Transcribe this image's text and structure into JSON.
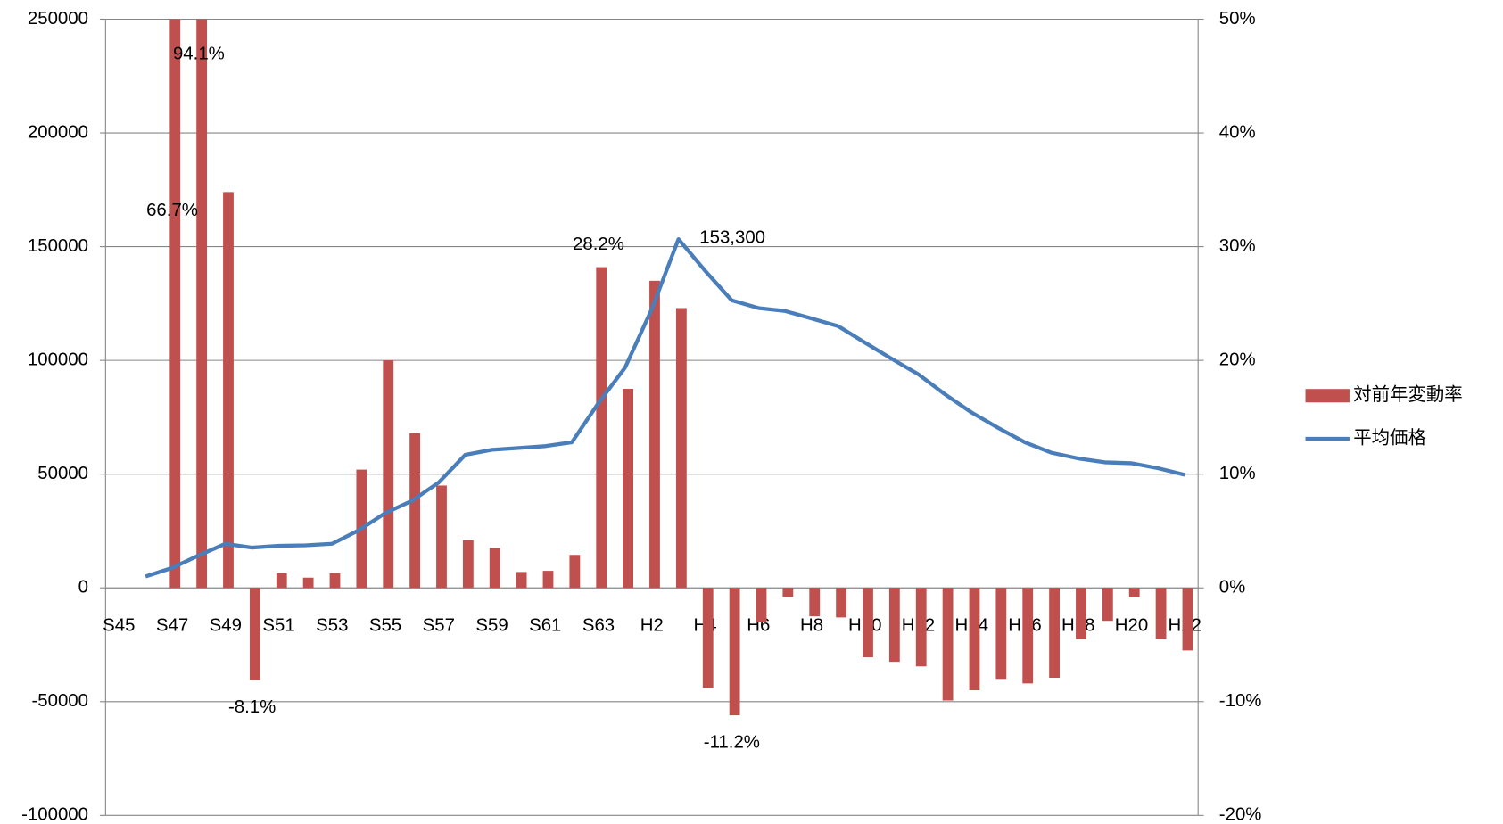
{
  "chart_data": {
    "type": "bar-line",
    "categories": [
      "S45",
      null,
      "S47",
      null,
      "S49",
      null,
      "S51",
      null,
      "S53",
      null,
      "S55",
      null,
      "S57",
      null,
      "S59",
      null,
      "S61",
      null,
      "S63",
      null,
      "H2",
      null,
      "H4",
      null,
      "H6",
      null,
      "H8",
      null,
      "H10",
      null,
      "H12",
      null,
      "H14",
      null,
      "H16",
      null,
      "H18",
      null,
      "H20",
      null,
      "H22"
    ],
    "series": [
      {
        "name": "対前年変動率",
        "type": "bar",
        "axis": "y2",
        "color": "#c0504d",
        "values": [
          null,
          null,
          66.7,
          94.1,
          34.8,
          -8.1,
          1.3,
          0.9,
          1.3,
          10.4,
          20.0,
          13.6,
          9.0,
          4.2,
          3.5,
          1.4,
          1.5,
          2.9,
          28.2,
          17.5,
          27.0,
          24.6,
          -8.8,
          -11.2,
          -3.0,
          -0.8,
          -2.5,
          -2.6,
          -6.1,
          -6.5,
          -6.9,
          -9.9,
          -9.0,
          -8.0,
          -8.4,
          -7.9,
          -4.5,
          -2.9,
          -0.8,
          -4.5,
          -5.5
        ],
        "value_labels": [
          null,
          null,
          "66.7%",
          "94.1%",
          null,
          "-8.1%",
          null,
          null,
          null,
          null,
          null,
          null,
          null,
          null,
          null,
          null,
          null,
          null,
          "28.2%",
          null,
          null,
          null,
          null,
          "-11.2%",
          null,
          null,
          null,
          null,
          null,
          null,
          null,
          null,
          null,
          null,
          null,
          null,
          null,
          null,
          null,
          null,
          null
        ]
      },
      {
        "name": "平均価格",
        "type": "line",
        "color": "#4a7ebb",
        "values": [
          null,
          5000,
          8800,
          14300,
          19400,
          17700,
          18500,
          18700,
          19400,
          25300,
          32900,
          38300,
          46300,
          58500,
          60700,
          61500,
          62300,
          64000,
          81300,
          96900,
          122600,
          153300,
          139400,
          126400,
          123000,
          121700,
          118400,
          115000,
          107800,
          100700,
          93900,
          85100,
          77100,
          70300,
          64000,
          59400,
          56900,
          55200,
          54800,
          52600,
          49700
        ],
        "value_labels": [
          null,
          null,
          null,
          null,
          null,
          null,
          null,
          null,
          null,
          null,
          null,
          null,
          null,
          null,
          null,
          null,
          null,
          null,
          null,
          null,
          null,
          "153,300",
          null,
          null,
          null,
          null,
          null,
          null,
          null,
          null,
          null,
          null,
          null,
          null,
          null,
          null,
          null,
          null,
          null,
          null,
          null
        ]
      }
    ],
    "ylim": [
      -100000,
      250000
    ],
    "yticks": [
      -100000,
      -50000,
      0,
      50000,
      100000,
      150000,
      200000,
      250000
    ],
    "y2lim": [
      -20,
      50
    ],
    "y2ticks": [
      {
        "value": -20,
        "label": "-20%"
      },
      {
        "value": -10,
        "label": "-10%"
      },
      {
        "value": 0,
        "label": "0%"
      },
      {
        "value": 10,
        "label": "10%"
      },
      {
        "value": 20,
        "label": "20%"
      },
      {
        "value": 30,
        "label": "30%"
      },
      {
        "value": 40,
        "label": "40%"
      },
      {
        "value": 50,
        "label": "50%"
      }
    ],
    "grid": true,
    "legend": "right"
  }
}
